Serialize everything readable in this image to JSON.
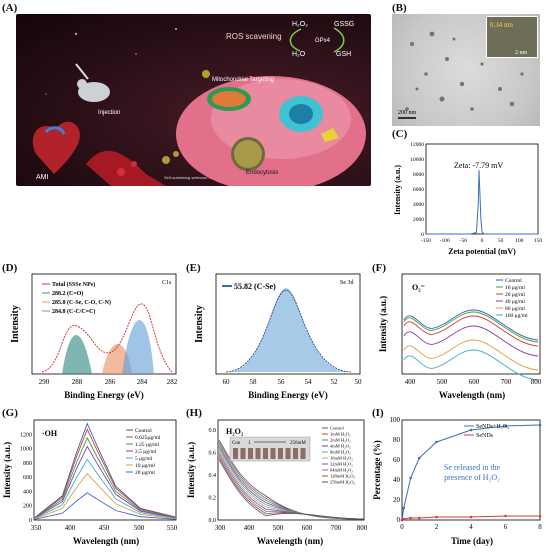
{
  "labels": {
    "A": "(A)",
    "B": "(B)",
    "C": "(C)",
    "D": "(D)",
    "E": "(E)",
    "F": "(F)",
    "G": "(G)",
    "H": "(H)",
    "I": "(I)"
  },
  "illustration": {
    "ros": "ROS scavening",
    "h2o2": "H₂O₂",
    "h2o": "H₂O",
    "gssg": "GSSG",
    "gsh": "GSH",
    "gpx4": "GPx4",
    "mito": "Mitochondrial Targeting",
    "injection": "Injection",
    "ami": "AMI",
    "endo": "Endocytosis",
    "np": "Self-sustaining selenium -embedded nanoparticles"
  },
  "tem": {
    "inset_value": "0.34 nm",
    "inset_scale": "2 nm",
    "scale": "200 nm"
  },
  "colors": {
    "blue": "#3a6fc0",
    "red": "#d43a3a",
    "teal": "#3b8e8a",
    "orange": "#e8966a",
    "light_blue": "#5d9fd6"
  },
  "panel_c": {
    "annotation": "Zeta: -7.79 mV",
    "xlabel": "Zeta potential (mV)",
    "ylabel": "Intensity (a.u.)",
    "xticks": [
      "-150",
      "-100",
      "-50",
      "0",
      "50",
      "100",
      "150"
    ],
    "yticks": [
      "0",
      "2000",
      "4000",
      "6000",
      "8000",
      "10000",
      "12000"
    ]
  },
  "panel_d": {
    "corner": "C1s",
    "legend": [
      "Total (SSSe NPs)",
      "288.2 (C=O)",
      "285.8 (C-Se, C-O, C-N)",
      "284.8 (C-C/C=C)"
    ],
    "xlabel": "Binding Energy (eV)",
    "ylabel": "Intensity",
    "xticks": [
      "290",
      "288",
      "286",
      "284",
      "282"
    ]
  },
  "panel_e": {
    "corner": "Se 3d",
    "legend": "55.82 (C-Se)",
    "xlabel": "Binding Energy (eV)",
    "ylabel": "Intensity",
    "xticks": [
      "60",
      "58",
      "56",
      "54",
      "52",
      "50"
    ]
  },
  "panel_f": {
    "corner": "O₂⁻",
    "legend": [
      "Control",
      "10 μg/ml",
      "20 μg/ml",
      "40 μg/ml",
      "80 μg/ml",
      "160 μg/ml"
    ],
    "xlabel": "Wavelength (nm)",
    "ylabel": "Intensity (a.u.)",
    "xticks": [
      "400",
      "500",
      "600",
      "700",
      "800"
    ]
  },
  "panel_g": {
    "corner": "·OH",
    "legend": [
      "Control",
      "0.625μg/ml",
      "1.25 μg/ml",
      "2.5 μg/ml",
      "5 μg/ml",
      "10 μg/ml",
      "20 μg/ml"
    ],
    "xlabel": "Wavelength (nm)",
    "ylabel": "Intensity (a.u.)",
    "xticks": [
      "350",
      "400",
      "450",
      "500",
      "550"
    ],
    "yticks": [
      "0",
      "200",
      "400",
      "600",
      "800",
      "1000",
      "1200"
    ]
  },
  "panel_h": {
    "corner": "H₂O₂",
    "inset_left": "Con",
    "inset_one": "1",
    "inset_right": "256mM",
    "legend": [
      "Control",
      "1mM H₂O₂",
      "2mM H₂O₂",
      "4mM H₂O₂",
      "8mM H₂O₂",
      "16mM H₂O₂",
      "32mM H₂O₂",
      "64mM H₂O₂",
      "128mM H₂O₂",
      "256mM H₂O₂"
    ],
    "xlabel": "Wavelength (nm)",
    "ylabel": "Intensity (a.u.)",
    "xticks": [
      "300",
      "400",
      "500",
      "600",
      "700",
      "800"
    ],
    "yticks": [
      "0.0",
      "0.2",
      "0.4",
      "0.6",
      "0.8"
    ]
  },
  "panel_i": {
    "legend": [
      "SeNDs+H₂O₂",
      "SeNDs"
    ],
    "annotation1": "Se released in the",
    "annotation2": "presence of H₂O₂",
    "xlabel": "Time (day)",
    "ylabel": "Percentage (%)",
    "xticks": [
      "0",
      "2",
      "4",
      "6",
      "8"
    ],
    "yticks": [
      "0",
      "20",
      "40",
      "60",
      "80",
      "100"
    ]
  },
  "chart_data": [
    {
      "panel": "C",
      "type": "line",
      "x": [
        -150,
        -30,
        -15,
        -10,
        -8,
        -6,
        -3,
        0,
        5,
        150
      ],
      "series": [
        {
          "values": [
            0,
            0,
            200,
            4000,
            8500,
            6000,
            2000,
            300,
            0,
            0
          ]
        }
      ],
      "xlim": [
        -150,
        150
      ],
      "ylim": [
        0,
        12000
      ]
    },
    {
      "panel": "I",
      "type": "line",
      "x": [
        0,
        0.1,
        0.5,
        1,
        2,
        4,
        6,
        8
      ],
      "series": [
        {
          "name": "SeNDs+H₂O₂",
          "values": [
            0,
            12,
            42,
            62,
            78,
            90,
            94,
            95
          ]
        },
        {
          "name": "SeNDs",
          "values": [
            0,
            1,
            2,
            2,
            3,
            3,
            4,
            4
          ]
        }
      ],
      "xlim": [
        0,
        8
      ],
      "ylim": [
        0,
        100
      ]
    },
    {
      "panel": "G",
      "type": "line",
      "x": [
        350,
        380,
        400,
        420,
        430,
        440,
        470,
        500,
        550
      ],
      "series": [
        {
          "name": "Control",
          "peak": 1350
        },
        {
          "name": "0.625μg/ml",
          "peak": 1270
        },
        {
          "name": "1.25 μg/ml",
          "peak": 1150
        },
        {
          "name": "2.5 μg/ml",
          "peak": 1030
        },
        {
          "name": "5 μg/ml",
          "peak": 850
        },
        {
          "name": "10 μg/ml",
          "peak": 650
        },
        {
          "name": "20 μg/ml",
          "peak": 380
        }
      ],
      "xlim": [
        350,
        550
      ],
      "ylim": [
        0,
        1400
      ]
    }
  ]
}
